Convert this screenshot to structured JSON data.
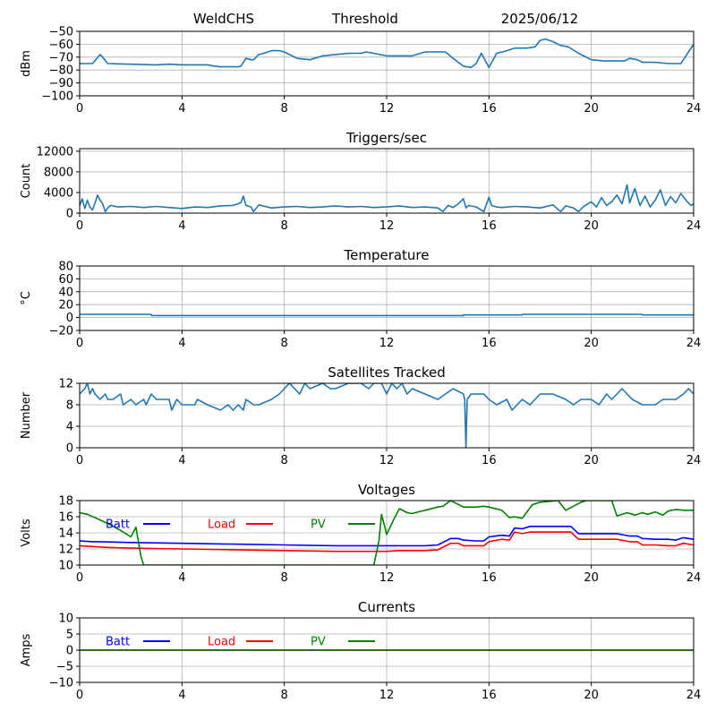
{
  "header": {
    "site": "WeldCHS",
    "mode": "Threshold",
    "date": "2025/06/12"
  },
  "colors": {
    "series_default": "#1f77b4",
    "batt": "#0000ff",
    "load": "#ff0000",
    "pv": "#008000",
    "grid": "#b0b0b0"
  },
  "chart_data": [
    {
      "id": "rssi",
      "type": "line",
      "title": "",
      "xlabel": "",
      "ylabel": "dBm",
      "xlim": [
        0,
        24
      ],
      "ylim": [
        -100,
        -50
      ],
      "xticks": [
        0,
        4,
        8,
        12,
        16,
        20,
        24
      ],
      "yticks": [
        -100,
        -90,
        -80,
        -70,
        -60,
        -50
      ],
      "grid": true,
      "series": [
        {
          "color": "#1f77b4",
          "x": [
            0,
            0.5,
            0.8,
            0.9,
            1.1,
            2,
            3,
            3.5,
            4,
            4.5,
            5,
            5.3,
            5.5,
            6.0,
            6.2,
            6.3,
            6.5,
            6.7,
            6.8,
            7.0,
            7.2,
            7.5,
            7.8,
            8.0,
            8.5,
            9.0,
            9.5,
            10,
            10.5,
            11,
            11.2,
            11.5,
            12,
            12.5,
            13,
            13.5,
            14,
            14.3,
            14.6,
            15.0,
            15.3,
            15.5,
            15.7,
            16.0,
            16.3,
            16.7,
            17.0,
            17.5,
            17.8,
            18.0,
            18.2,
            18.5,
            18.8,
            19.1,
            19.5,
            20.0,
            20.5,
            21,
            21.3,
            21.5,
            21.8,
            22,
            22.5,
            23,
            23.5,
            23.8,
            24
          ],
          "y": [
            -75,
            -75,
            -68,
            -70,
            -75,
            -75.5,
            -76,
            -75.5,
            -76,
            -76,
            -76,
            -77,
            -77.5,
            -77.5,
            -77.5,
            -77,
            -71,
            -72,
            -72,
            -68,
            -67,
            -65,
            -65,
            -66,
            -71,
            -72,
            -69,
            -68,
            -67,
            -67,
            -66,
            -67,
            -69,
            -69,
            -69,
            -66,
            -66,
            -66,
            -71,
            -77,
            -78,
            -75,
            -67,
            -78,
            -67,
            -65,
            -63,
            -63,
            -62,
            -57,
            -56,
            -58,
            -61,
            -62,
            -67,
            -72,
            -73,
            -73,
            -73,
            -71,
            -72,
            -74,
            -74,
            -75,
            -75,
            -66,
            -60
          ]
        }
      ]
    },
    {
      "id": "triggers",
      "type": "line",
      "title": "Triggers/sec",
      "xlabel": "",
      "ylabel": "Count",
      "xlim": [
        0,
        24
      ],
      "ylim": [
        0,
        12500
      ],
      "xticks": [
        0,
        4,
        8,
        12,
        16,
        20,
        24
      ],
      "yticks": [
        0,
        4000,
        8000,
        12000
      ],
      "grid": true,
      "series": [
        {
          "color": "#1f77b4",
          "x": [
            0,
            0.1,
            0.2,
            0.3,
            0.4,
            0.5,
            0.6,
            0.7,
            0.8,
            0.9,
            1.0,
            1.1,
            1.2,
            1.5,
            2.0,
            2.5,
            3.0,
            3.5,
            4.0,
            4.5,
            5.0,
            5.5,
            6.0,
            6.3,
            6.4,
            6.5,
            6.7,
            6.8,
            7.0,
            7.5,
            8.0,
            8.5,
            9.0,
            9.5,
            10.0,
            10.5,
            11.0,
            11.5,
            12.0,
            12.5,
            13.0,
            13.5,
            14.0,
            14.2,
            14.4,
            14.6,
            14.8,
            15.0,
            15.1,
            15.2,
            15.5,
            15.8,
            16.0,
            16.1,
            16.3,
            16.5,
            17.0,
            17.5,
            18.0,
            18.5,
            18.8,
            19.0,
            19.3,
            19.5,
            19.7,
            20.0,
            20.2,
            20.4,
            20.6,
            20.8,
            21.0,
            21.2,
            21.4,
            21.5,
            21.7,
            21.9,
            22.1,
            22.3,
            22.5,
            22.7,
            22.9,
            23.1,
            23.3,
            23.5,
            23.7,
            23.9,
            24.0
          ],
          "y": [
            1500,
            2800,
            900,
            2500,
            1200,
            600,
            2000,
            3500,
            2500,
            1800,
            300,
            1000,
            1500,
            1200,
            1300,
            1100,
            1300,
            1100,
            900,
            1200,
            1100,
            1400,
            1500,
            2000,
            3300,
            1500,
            1200,
            300,
            1600,
            1000,
            1200,
            1300,
            1100,
            1200,
            1400,
            1200,
            1300,
            1100,
            1200,
            1400,
            1100,
            1200,
            1000,
            300,
            1500,
            1100,
            1800,
            2800,
            1000,
            1500,
            1200,
            300,
            3100,
            1500,
            1200,
            1100,
            1300,
            1200,
            1000,
            1600,
            300,
            1400,
            1000,
            300,
            1300,
            2200,
            1200,
            3000,
            1500,
            2200,
            3500,
            1800,
            5500,
            2000,
            4800,
            1500,
            3300,
            1200,
            2500,
            4500,
            1500,
            3200,
            2000,
            3800,
            2500,
            1500,
            1800
          ]
        }
      ]
    },
    {
      "id": "temperature",
      "type": "line",
      "title": "Temperature",
      "xlabel": "",
      "ylabel": "°C",
      "xlim": [
        0,
        24
      ],
      "ylim": [
        -20,
        80
      ],
      "xticks": [
        0,
        4,
        8,
        12,
        16,
        20,
        24
      ],
      "yticks": [
        -20,
        0,
        20,
        40,
        60,
        80
      ],
      "grid": true,
      "series": [
        {
          "color": "#1f77b4",
          "x": [
            0,
            2.8,
            2.8,
            15.0,
            15.0,
            17.3,
            17.3,
            22.0,
            22.0,
            24
          ],
          "y": [
            5,
            5,
            3,
            3,
            4,
            4,
            5,
            5,
            4,
            4
          ]
        }
      ]
    },
    {
      "id": "satellites",
      "type": "line",
      "title": "Satellites Tracked",
      "xlabel": "",
      "ylabel": "Number",
      "xlim": [
        0,
        24
      ],
      "ylim": [
        0,
        12
      ],
      "xticks": [
        0,
        4,
        8,
        12,
        16,
        20,
        24
      ],
      "yticks": [
        0,
        4,
        8,
        12
      ],
      "grid": true,
      "series": [
        {
          "color": "#1f77b4",
          "x": [
            0,
            0.2,
            0.3,
            0.4,
            0.5,
            0.6,
            0.8,
            1.0,
            1.1,
            1.3,
            1.6,
            1.7,
            2.0,
            2.2,
            2.5,
            2.6,
            2.8,
            3.0,
            3.5,
            3.6,
            3.8,
            4.0,
            4.5,
            4.6,
            5.0,
            5.5,
            5.8,
            6.0,
            6.2,
            6.4,
            6.5,
            6.8,
            7.0,
            7.5,
            7.8,
            8.0,
            8.2,
            8.4,
            8.6,
            8.8,
            9.0,
            9.5,
            9.8,
            10.0,
            10.5,
            11.0,
            11.3,
            11.5,
            11.8,
            12.0,
            12.2,
            12.4,
            12.6,
            12.8,
            13.0,
            13.5,
            14.0,
            14.3,
            14.6,
            15.0,
            15.05,
            15.1,
            15.15,
            15.3,
            15.8,
            16.0,
            16.3,
            16.7,
            16.9,
            17.1,
            17.3,
            17.6,
            17.8,
            18.0,
            18.5,
            19.0,
            19.3,
            19.6,
            20.0,
            20.3,
            20.6,
            20.8,
            21.0,
            21.2,
            21.6,
            22.0,
            22.5,
            22.8,
            23.0,
            23.3,
            23.6,
            23.8,
            24
          ],
          "y": [
            10,
            11,
            12,
            10,
            11,
            10,
            9,
            10,
            9,
            9,
            10,
            8,
            9,
            8,
            9,
            8,
            10,
            9,
            9,
            7,
            9,
            8,
            8,
            9,
            8,
            7,
            8,
            7,
            8,
            7,
            9,
            8,
            8,
            9,
            10,
            11,
            12,
            11,
            10,
            12,
            11,
            12,
            11,
            11,
            12,
            12,
            11,
            12,
            12,
            10,
            12,
            11,
            12,
            10,
            11,
            10,
            9,
            10,
            11,
            10,
            9,
            0,
            9,
            10,
            10,
            9,
            8,
            9,
            7,
            8,
            9,
            8,
            9,
            10,
            10,
            9,
            8,
            9,
            9,
            8,
            10,
            9,
            10,
            11,
            9,
            8,
            8,
            9,
            9,
            9,
            10,
            11,
            10
          ]
        }
      ]
    },
    {
      "id": "voltages",
      "type": "line",
      "title": "Voltages",
      "xlabel": "",
      "ylabel": "Volts",
      "xlim": [
        0,
        24
      ],
      "ylim": [
        10,
        18
      ],
      "xticks": [
        0,
        4,
        8,
        12,
        16,
        20,
        24
      ],
      "yticks": [
        10,
        12,
        14,
        16,
        18
      ],
      "grid": true,
      "legend": [
        "Batt",
        "Load",
        "PV"
      ],
      "series": [
        {
          "name": "Batt",
          "color": "#0000ff",
          "x": [
            0,
            0.5,
            0.8,
            2,
            4,
            6,
            8,
            10,
            12,
            12.5,
            13,
            13.5,
            14,
            14.5,
            14.8,
            15,
            15.5,
            15.8,
            16,
            16.5,
            16.8,
            17.0,
            17.3,
            17.6,
            18,
            18.5,
            19.0,
            19.2,
            19.5,
            20,
            20.5,
            21,
            21.5,
            21.8,
            22,
            22.5,
            23,
            23.3,
            23.6,
            24
          ],
          "y": [
            13.0,
            12.9,
            12.9,
            12.8,
            12.7,
            12.6,
            12.5,
            12.4,
            12.4,
            12.4,
            12.4,
            12.4,
            12.5,
            13.3,
            13.3,
            13.1,
            13.0,
            13.0,
            13.5,
            13.7,
            13.6,
            14.6,
            14.5,
            14.8,
            14.8,
            14.8,
            14.8,
            14.8,
            13.9,
            13.9,
            13.9,
            13.9,
            13.6,
            13.6,
            13.3,
            13.2,
            13.2,
            13.1,
            13.4,
            13.2
          ]
        },
        {
          "name": "Load",
          "color": "#ff0000",
          "x": [
            0,
            0.5,
            1,
            2,
            4,
            6,
            8,
            10,
            12,
            12.5,
            13,
            13.5,
            14,
            14.5,
            14.8,
            15,
            15.5,
            15.8,
            16,
            16.5,
            16.8,
            17.0,
            17.3,
            17.6,
            18,
            18.5,
            19.0,
            19.2,
            19.5,
            20,
            20.5,
            21,
            21.5,
            21.8,
            22,
            22.5,
            23,
            23.3,
            23.6,
            24
          ],
          "y": [
            12.4,
            12.3,
            12.2,
            12.1,
            12.0,
            11.9,
            11.8,
            11.7,
            11.7,
            11.8,
            11.8,
            11.8,
            11.9,
            12.7,
            12.7,
            12.4,
            12.4,
            12.4,
            12.9,
            13.2,
            13.1,
            14.1,
            13.9,
            14.1,
            14.1,
            14.1,
            14.1,
            14.1,
            13.2,
            13.2,
            13.2,
            13.2,
            12.9,
            12.9,
            12.5,
            12.5,
            12.4,
            12.4,
            12.7,
            12.5
          ]
        },
        {
          "name": "PV",
          "color": "#008000",
          "x": [
            0,
            0.3,
            0.8,
            1.2,
            1.6,
            2.0,
            2.2,
            2.4,
            2.5,
            11.5,
            11.7,
            11.8,
            12.0,
            12.3,
            12.5,
            12.8,
            13.0,
            13.5,
            14.0,
            14.2,
            14.5,
            15.0,
            15.5,
            15.8,
            16.0,
            16.5,
            16.8,
            17.0,
            17.3,
            17.7,
            18.0,
            18.7,
            19.0,
            19.3,
            19.6,
            19.8,
            20.8,
            21.0,
            21.4,
            21.7,
            22.0,
            22.2,
            22.5,
            22.8,
            23.0,
            23.3,
            23.6,
            24
          ],
          "y": [
            16.5,
            16.3,
            15.6,
            15.0,
            14.3,
            13.5,
            14.7,
            11,
            10,
            10,
            13.0,
            16.3,
            13.8,
            15.8,
            17.0,
            16.5,
            16.4,
            16.8,
            17.2,
            17.3,
            18.0,
            17.2,
            17.2,
            17.3,
            17.2,
            16.8,
            15.9,
            16.0,
            15.8,
            17.5,
            17.8,
            18.0,
            16.8,
            17.3,
            17.8,
            18.0,
            18.0,
            16.1,
            16.5,
            16.2,
            16.5,
            16.3,
            16.6,
            16.2,
            16.7,
            16.9,
            16.8,
            16.8
          ]
        }
      ]
    },
    {
      "id": "currents",
      "type": "line",
      "title": "Currents",
      "xlabel": "",
      "ylabel": "Amps",
      "xlim": [
        0,
        24
      ],
      "ylim": [
        -10,
        10
      ],
      "xticks": [
        0,
        4,
        8,
        12,
        16,
        20,
        24
      ],
      "yticks": [
        -10,
        -5,
        0,
        5,
        10
      ],
      "grid": true,
      "legend": [
        "Batt",
        "Load",
        "PV"
      ],
      "series": [
        {
          "name": "Batt",
          "color": "#0000ff",
          "x": [
            0,
            24
          ],
          "y": [
            0,
            0
          ]
        },
        {
          "name": "Load",
          "color": "#ff0000",
          "x": [
            0,
            24
          ],
          "y": [
            0,
            0
          ]
        },
        {
          "name": "PV",
          "color": "#008000",
          "x": [
            0,
            24
          ],
          "y": [
            0,
            0
          ]
        }
      ]
    }
  ]
}
